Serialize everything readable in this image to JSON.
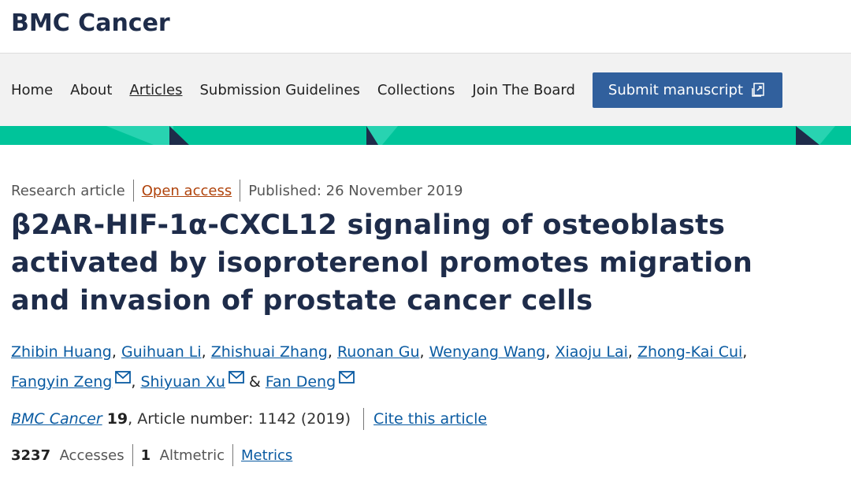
{
  "header": {
    "journal": "BMC Cancer"
  },
  "nav": {
    "items": [
      "Home",
      "About",
      "Articles",
      "Submission Guidelines",
      "Collections",
      "Join The Board"
    ],
    "current": 2,
    "submit": "Submit manuscript"
  },
  "article": {
    "type": "Research article",
    "access": "Open access",
    "published": "Published: 26 November 2019",
    "title": "β2AR-HIF-1α-CXCL12 signaling of osteoblasts activated by isoproterenol promotes migration and invasion of prostate cancer cells",
    "authors": [
      "Zhibin Huang",
      "Guihuan Li",
      "Zhishuai Zhang",
      "Ruonan Gu",
      "Wenyang Wang",
      "Xiaoju Lai",
      "Zhong-Kai Cui",
      "Fangyin Zeng",
      "Shiyuan Xu",
      "Fan Deng"
    ],
    "corresponding": [
      7,
      8,
      9
    ],
    "author_separator": ",",
    "author_last_separator": "&",
    "citation": {
      "journal": "BMC Cancer",
      "volume": "19",
      "details": ", Article number: 1142 (2019)",
      "cite": "Cite this article"
    },
    "metrics": {
      "accesses": 3237,
      "accesses_label": "Accesses",
      "altmetric": 1,
      "altmetric_label": "Altmetric",
      "link": "Metrics"
    }
  }
}
